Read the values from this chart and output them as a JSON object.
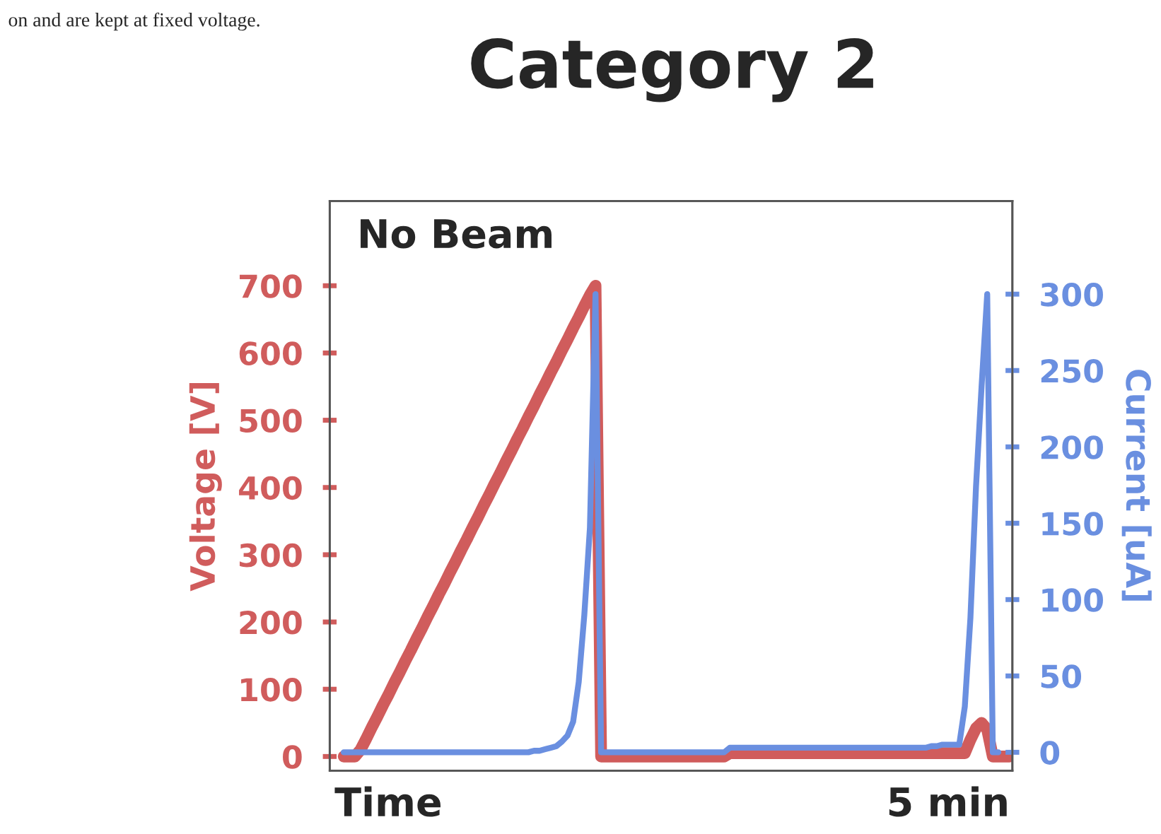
{
  "chart_data": {
    "type": "line",
    "title": "Category 2",
    "annotations": [
      "on and are kept at fixed voltage.",
      "No Beam"
    ],
    "ylabel": "Voltage [V]",
    "y2label": "Current [uA]",
    "categories": [
      null,
      null,
      null,
      null,
      null,
      null,
      null,
      null,
      "Time",
      null,
      null,
      null,
      null,
      null,
      null,
      null,
      null,
      null,
      null,
      null,
      null,
      null,
      null,
      null,
      null,
      null,
      null,
      null,
      null,
      null,
      null,
      null,
      null,
      null,
      null,
      null,
      null,
      null,
      null,
      null,
      null,
      null,
      null,
      null,
      null,
      null,
      null,
      null,
      null,
      null,
      null,
      null,
      null,
      null,
      null,
      null,
      null,
      null,
      null,
      null,
      null,
      null,
      null,
      null,
      null,
      null,
      null,
      null,
      null,
      null,
      null,
      null,
      null,
      null,
      null,
      null,
      null,
      null,
      null,
      null,
      null,
      null,
      null,
      null,
      null,
      null,
      null,
      null,
      null,
      null,
      null,
      null,
      null,
      null,
      null,
      null,
      null,
      null,
      null,
      null,
      null,
      null,
      null,
      null,
      null,
      null,
      null,
      null,
      "5 min",
      null,
      null,
      null,
      null,
      null,
      null,
      null,
      null,
      null,
      null,
      null
    ],
    "ylim": [
      -21,
      826
    ],
    "yticks": [
      0,
      100,
      200,
      300,
      400,
      500,
      600,
      700
    ],
    "y2lim": [
      -12,
      361
    ],
    "y2ticks": [
      0,
      50,
      100,
      150,
      200,
      250,
      300
    ],
    "grid": false,
    "legend": false,
    "marker": "none",
    "line_style": "solid",
    "series": [
      {
        "color": "#d05c5c",
        "values": [
          0,
          0,
          0,
          10,
          26,
          43,
          59,
          76,
          92,
          109,
          125,
          142,
          158,
          175,
          191,
          208,
          224,
          241,
          257,
          274,
          290,
          307,
          323,
          340,
          356,
          373,
          389,
          406,
          422,
          439,
          455,
          472,
          488,
          505,
          521,
          538,
          554,
          571,
          587,
          604,
          620,
          637,
          653,
          670,
          686,
          700,
          0,
          0,
          0,
          0,
          0,
          0,
          0,
          0,
          0,
          0,
          0,
          0,
          0,
          0,
          0,
          0,
          0,
          0,
          0,
          0,
          0,
          0,
          0,
          5,
          5,
          5,
          5,
          5,
          5,
          5,
          5,
          5,
          5,
          5,
          5,
          5,
          5,
          5,
          5,
          5,
          5,
          5,
          5,
          5,
          5,
          5,
          5,
          5,
          5,
          5,
          5,
          5,
          5,
          5,
          5,
          5,
          5,
          5,
          5,
          5,
          5,
          5,
          5,
          5,
          5,
          5,
          25,
          42,
          50,
          40,
          0,
          0,
          0,
          0
        ]
      },
      {
        "color": "#6a8fe0",
        "axis": "y2",
        "values": [
          0,
          0,
          0,
          0,
          0,
          0,
          0,
          0,
          0,
          0,
          0,
          0,
          0,
          0,
          0,
          0,
          0,
          0,
          0,
          0,
          0,
          0,
          0,
          0,
          0,
          0,
          0,
          0,
          0,
          0,
          0,
          0,
          0,
          0,
          1,
          1,
          2,
          3,
          4,
          7,
          11,
          20,
          46,
          90,
          147,
          300,
          0,
          0,
          0,
          0,
          0,
          0,
          0,
          0,
          0,
          0,
          0,
          0,
          0,
          0,
          0,
          0,
          0,
          0,
          0,
          0,
          0,
          0,
          0,
          3,
          3,
          3,
          3,
          3,
          3,
          3,
          3,
          3,
          3,
          3,
          3,
          3,
          3,
          3,
          3,
          3,
          3,
          3,
          3,
          3,
          3,
          3,
          3,
          3,
          3,
          3,
          3,
          3,
          3,
          3,
          3,
          3,
          3,
          3,
          3,
          4,
          4,
          5,
          5,
          5,
          5,
          30,
          88,
          174,
          240,
          300,
          0,
          0,
          null,
          null
        ]
      }
    ]
  }
}
